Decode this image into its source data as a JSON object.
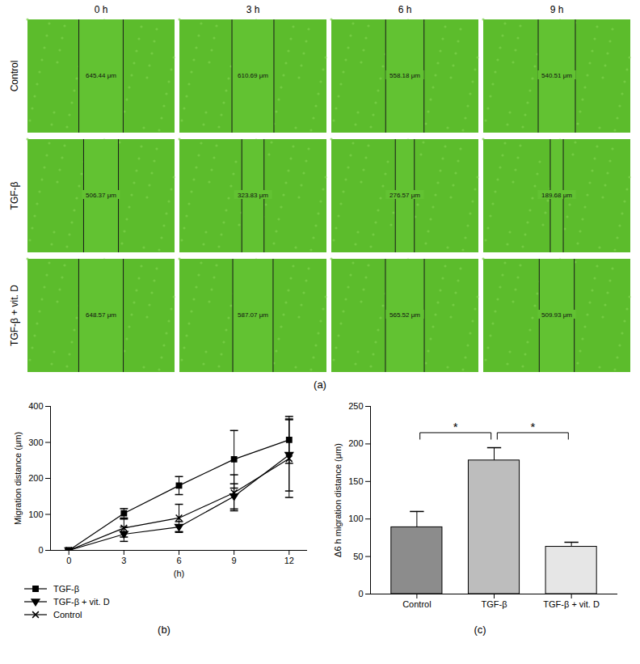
{
  "figure": {
    "panel_a": {
      "panel_label": "(a)",
      "columns": [
        "0 h",
        "3 h",
        "6 h",
        "9 h"
      ],
      "rows": [
        {
          "name": "Control",
          "widths": [
            {
              "value": 645.44,
              "label": "645.44 μm"
            },
            {
              "value": 610.69,
              "label": "610.69 μm"
            },
            {
              "value": 558.18,
              "label": "558.18 μm"
            },
            {
              "value": 540.51,
              "label": "540.51 μm"
            }
          ]
        },
        {
          "name": "TGF-β",
          "widths": [
            {
              "value": 506.37,
              "label": "506.37 μm"
            },
            {
              "value": 323.83,
              "label": "323.83 μm"
            },
            {
              "value": 276.57,
              "label": "276.57 μm"
            },
            {
              "value": 189.68,
              "label": "189.68 μm"
            }
          ]
        },
        {
          "name": "TGF-β + vit. D",
          "widths": [
            {
              "value": 648.57,
              "label": "648.57 μm"
            },
            {
              "value": 587.07,
              "label": "587.07 μm"
            },
            {
              "value": 565.52,
              "label": "565.52 μm"
            },
            {
              "value": 509.93,
              "label": "509.93 μm"
            }
          ]
        }
      ]
    }
  },
  "chart_data": [
    {
      "type": "line",
      "panel_label": "(b)",
      "x": [
        0,
        3,
        6,
        9,
        12
      ],
      "xlim": [
        -1,
        13
      ],
      "xticks": [
        0,
        3,
        6,
        9,
        12
      ],
      "x_label": "(h)",
      "ylim": [
        0,
        400
      ],
      "yticks": [
        0,
        100,
        200,
        300,
        400
      ],
      "y_label": "Migration distance (μm)",
      "legend": "bottom",
      "series": [
        {
          "name": "TGF-β",
          "color": "#000000",
          "marker": "square",
          "values": [
            0,
            103,
            180,
            253,
            307
          ],
          "errors": [
            0,
            13,
            25,
            80,
            65
          ]
        },
        {
          "name": "TGF-β + vit. D",
          "color": "#000000",
          "marker": "triangle-down",
          "values": [
            0,
            45,
            65,
            150,
            265
          ],
          "errors": [
            0,
            20,
            15,
            35,
            100
          ]
        },
        {
          "name": "Control",
          "color": "#000000",
          "marker": "x",
          "values": [
            0,
            62,
            90,
            160,
            255
          ],
          "errors": [
            0,
            25,
            38,
            50,
            108
          ]
        }
      ]
    },
    {
      "type": "bar",
      "panel_label": "(c)",
      "categories": [
        "Control",
        "TGF-β",
        "TGF-β + vit. D"
      ],
      "values": [
        89,
        178,
        63
      ],
      "errors": [
        21,
        17,
        6
      ],
      "colors": [
        "#8c8c8c",
        "#bdbdbd",
        "#e6e6e6"
      ],
      "ylim": [
        0,
        250
      ],
      "yticks": [
        0,
        50,
        100,
        150,
        200,
        250
      ],
      "y_label": "Δ6 h migration distance (μm)",
      "comparisons": [
        {
          "from": "Control",
          "to": "TGF-β",
          "y": 215,
          "label": "*"
        },
        {
          "from": "TGF-β",
          "to": "TGF-β + vit. D",
          "y": 215,
          "label": "*"
        }
      ]
    }
  ]
}
